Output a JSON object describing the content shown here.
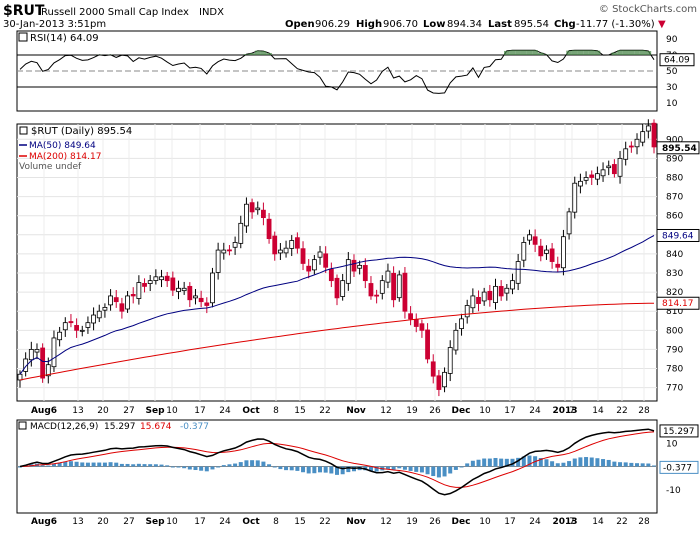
{
  "header": {
    "symbol": "$RUT",
    "name": "Russell 2000 Small Cap Index",
    "exchange": "INDX",
    "datetime": "30-Jan-2013 3:51pm",
    "watermark": "© StockCharts.com",
    "open_label": "Open",
    "open": "906.29",
    "high_label": "High",
    "high": "906.70",
    "low_label": "Low",
    "low": "894.34",
    "last_label": "Last",
    "last": "895.54",
    "chg_label": "Chg",
    "chg": "-11.77 (-1.30%)",
    "chg_arrow": "▼"
  },
  "rsi": {
    "legend": "RSI(14) 64.09",
    "value_tag": "64.09"
  },
  "price": {
    "legend_main": "$RUT (Daily) 895.54",
    "legend_ma50": "MA(50) 849.64",
    "legend_ma200": "MA(200) 814.17",
    "legend_volume": "Volume undef",
    "last_tag": "895.54",
    "ma50_tag": "849.64",
    "ma200_tag": "814.17"
  },
  "macd": {
    "legend_prefix": "MACD(12,26,9)",
    "macd": "15.297",
    "signal": "15.674",
    "hist": "-0.377",
    "macd_tag": "15.297",
    "hist_tag": "-0.377"
  },
  "colors": {
    "up": "#ffffff",
    "down": "#cc0033",
    "ma50": "#000080",
    "ma200": "#dd0000",
    "hist": "#4a8fc4",
    "rsi_fill": "#3f7f3f"
  },
  "chart_data": {
    "type": "candlestick",
    "title": "Russell 2000 Small Cap Index (Daily)",
    "x_labels": [
      "Aug6",
      "13",
      "20",
      "27",
      "Sep",
      "10",
      "17",
      "24",
      "Oct",
      "8",
      "15",
      "22",
      "Nov",
      "12",
      "19",
      "26",
      "Dec",
      "10",
      "17",
      "24",
      "2013",
      "7",
      "14",
      "22",
      "28"
    ],
    "price_ticks": [
      770,
      780,
      790,
      800,
      810,
      820,
      830,
      840,
      850,
      860,
      870,
      880,
      890,
      900
    ],
    "ylim": [
      763,
      908
    ],
    "closes": [
      777,
      785,
      790,
      790,
      775,
      782,
      796,
      799,
      804,
      804,
      800,
      800,
      804,
      808,
      810,
      812,
      818,
      815,
      810,
      818,
      818,
      825,
      823,
      826,
      828,
      828,
      826,
      821,
      822,
      822,
      816,
      818,
      815,
      813,
      830,
      842,
      842,
      842,
      846,
      856,
      866,
      862,
      864,
      859,
      848,
      840,
      842,
      843,
      847,
      843,
      835,
      831,
      837,
      841,
      833,
      826,
      817,
      826,
      837,
      831,
      834,
      826,
      818,
      818,
      826,
      831,
      816,
      829,
      810,
      806,
      802,
      800,
      785,
      776,
      769,
      778,
      791,
      800,
      806,
      813,
      818,
      814,
      820,
      816,
      823,
      818,
      822,
      826,
      836,
      846,
      850,
      845,
      839,
      842,
      836,
      833,
      849,
      862,
      877,
      878,
      880,
      880,
      882,
      884,
      886,
      882,
      890,
      895,
      896,
      900,
      904,
      907,
      896
    ],
    "ma50_end": 849.64,
    "ma200_end": 814.17,
    "rsi": {
      "ticks": [
        30,
        50,
        70
      ],
      "extra_labels": [
        90,
        10
      ],
      "last": 64.09,
      "ylim": [
        0,
        100
      ]
    },
    "macd": {
      "ticks": [
        10,
        0,
        -10
      ],
      "ylim": [
        -20,
        20
      ],
      "macd_last": 15.297,
      "signal_last": 15.674,
      "hist_last": -0.377
    }
  }
}
